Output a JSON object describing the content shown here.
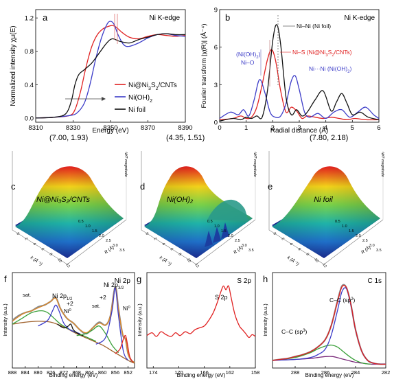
{
  "colors": {
    "red": "#e02020",
    "blue": "#3c3cc8",
    "black": "#111111",
    "green": "#3aa03a",
    "brown": "#a0622d",
    "orange": "#e08a2a",
    "gray": "#888888",
    "purple": "#7a2a7a"
  },
  "chart_data": [
    {
      "id": "a",
      "type": "line",
      "panel_label": "a",
      "title": "Ni K-edge",
      "xlabel": "Energy (eV)",
      "ylabel": "Normalized intensity  χμ(E)",
      "xlim": [
        8310,
        8390
      ],
      "ylim": [
        -0.05,
        1.3
      ],
      "xticks": [
        "8310",
        "8330",
        "8350",
        "8370",
        "8390"
      ],
      "yticks": [
        "0.0",
        "0.4",
        "0.8",
        "1.2"
      ],
      "legend": "right",
      "series": [
        {
          "name": "Ni@Ni3S2/CNTs",
          "legend_html": "Ni@Ni<tspan baseline-shift='sub' font-size='7'>3</tspan>S<tspan baseline-shift='sub' font-size='7'>2</tspan>/CNTs",
          "color": "red",
          "x": [
            8310,
            8320,
            8328,
            8331,
            8334,
            8337,
            8340,
            8343,
            8346,
            8349,
            8351,
            8353,
            8356,
            8360,
            8365,
            8370,
            8375,
            8380,
            8385,
            8390
          ],
          "y": [
            0.0,
            0.01,
            0.03,
            0.1,
            0.32,
            0.62,
            0.86,
            1.0,
            1.07,
            1.1,
            1.11,
            1.09,
            1.03,
            0.97,
            0.95,
            0.98,
            1.0,
            0.99,
            0.98,
            0.99
          ]
        },
        {
          "name": "Ni(OH)2",
          "legend_html": "Ni(OH)<tspan baseline-shift='sub' font-size='7'>2</tspan>",
          "color": "blue",
          "x": [
            8310,
            8320,
            8328,
            8332,
            8336,
            8339,
            8342,
            8345,
            8348,
            8350,
            8352,
            8354,
            8357,
            8360,
            8365,
            8370,
            8375,
            8380,
            8385,
            8390
          ],
          "y": [
            0.0,
            0.01,
            0.03,
            0.06,
            0.18,
            0.4,
            0.7,
            0.95,
            1.12,
            1.16,
            1.12,
            1.0,
            0.88,
            0.86,
            0.9,
            0.96,
            1.0,
            1.01,
            0.99,
            0.98
          ]
        },
        {
          "name": "Ni foil",
          "legend_html": "Ni foil",
          "color": "black",
          "x": [
            8310,
            8320,
            8326,
            8329,
            8331,
            8333,
            8336,
            8340,
            8344,
            8348,
            8351,
            8355,
            8360,
            8365,
            8370,
            8375,
            8380,
            8385,
            8390
          ],
          "y": [
            0.0,
            0.01,
            0.05,
            0.2,
            0.4,
            0.52,
            0.58,
            0.66,
            0.78,
            0.9,
            0.95,
            0.92,
            0.9,
            0.94,
            0.97,
            1.0,
            1.01,
            1.0,
            1.0
          ]
        }
      ]
    },
    {
      "id": "b",
      "type": "line",
      "panel_label": "b",
      "title": "Ni K-edge",
      "xlabel": "Radial distance (Å)",
      "ylabel": "Fourier transform |χ(R)| (Å⁻⁴)",
      "xlim": [
        0,
        6
      ],
      "ylim": [
        0,
        9
      ],
      "xticks": [
        "0",
        "1",
        "2",
        "3",
        "4",
        "5",
        "6"
      ],
      "yticks": [
        "0",
        "3",
        "6",
        "9"
      ],
      "annotations": [
        "Ni–Ni (Ni foil)",
        "(Ni(OH)2)",
        "Ni–O",
        "Ni–S (Ni@Ni3S2/CNTs)",
        "Ni···Ni (Ni(OH)2)"
      ],
      "series": [
        {
          "name": "Ni@Ni3S2/CNTs",
          "color": "red",
          "x": [
            0,
            0.5,
            0.8,
            1.0,
            1.2,
            1.4,
            1.6,
            1.8,
            1.95,
            2.1,
            2.3,
            2.5,
            2.7,
            2.9,
            3.1,
            3.3,
            3.6,
            3.9,
            4.2,
            4.5,
            4.8,
            5.1,
            5.5,
            6.0
          ],
          "y": [
            0.2,
            0.3,
            0.5,
            0.3,
            0.4,
            1.2,
            3.0,
            5.0,
            5.8,
            5.0,
            2.5,
            0.8,
            1.2,
            0.9,
            0.3,
            0.5,
            0.4,
            0.3,
            0.4,
            0.3,
            0.2,
            0.3,
            0.2,
            0.2
          ]
        },
        {
          "name": "Ni(OH)2",
          "color": "blue",
          "x": [
            0,
            0.4,
            0.7,
            0.9,
            1.1,
            1.3,
            1.5,
            1.7,
            1.9,
            2.1,
            2.3,
            2.5,
            2.7,
            2.85,
            3.0,
            3.2,
            3.4,
            3.7,
            4.0,
            4.3,
            4.6,
            4.9,
            5.2,
            5.5,
            5.8,
            6.0
          ],
          "y": [
            0.3,
            0.8,
            0.6,
            1.0,
            0.5,
            1.8,
            3.4,
            2.4,
            0.8,
            0.4,
            0.5,
            1.5,
            3.3,
            3.7,
            2.6,
            0.8,
            0.4,
            0.7,
            0.3,
            0.8,
            1.0,
            0.4,
            0.8,
            1.2,
            0.6,
            0.3
          ]
        },
        {
          "name": "Ni foil",
          "color": "black",
          "x": [
            0,
            0.5,
            0.8,
            1.0,
            1.2,
            1.4,
            1.6,
            1.8,
            2.0,
            2.15,
            2.3,
            2.5,
            2.7,
            2.9,
            3.1,
            3.3,
            3.6,
            3.9,
            4.2,
            4.4,
            4.6,
            4.8,
            5.0,
            5.3,
            5.6,
            6.0
          ],
          "y": [
            0.1,
            0.3,
            0.2,
            0.4,
            0.3,
            0.5,
            0.4,
            2.5,
            6.5,
            7.8,
            6.2,
            2.0,
            0.6,
            1.0,
            0.5,
            0.8,
            1.8,
            2.5,
            0.9,
            1.6,
            2.3,
            1.5,
            0.6,
            0.8,
            0.4,
            0.2
          ]
        }
      ]
    },
    {
      "id": "c",
      "type": "heatmap",
      "panel_label": "c",
      "peak_label": "(7.00, 1.93)",
      "sample_label": "Ni@Ni₃S₂/CNTs",
      "zlabel": "WT magnitude",
      "xlabel": "k (Å⁻¹)",
      "ylabel": "R (Å)",
      "xticks": [
        "0",
        "2",
        "4",
        "6",
        "8",
        "10",
        "12"
      ],
      "yticks": [
        "0.5",
        "1.0",
        "1.5",
        "2.0",
        "2.5",
        "3.0",
        "3.5"
      ],
      "peak_k": 7.0,
      "peak_r": 1.93
    },
    {
      "id": "d",
      "type": "heatmap",
      "panel_label": "d",
      "peak_label": "(4.35, 1.51)",
      "sample_label": "Ni(OH)₂",
      "zlabel": "WT magnitude",
      "xlabel": "k (Å⁻¹)",
      "ylabel": "R (Å)",
      "xticks": [
        "0",
        "2",
        "4",
        "6",
        "8",
        "10",
        "12"
      ],
      "yticks": [
        "0.5",
        "1.0",
        "1.5",
        "2.0",
        "2.5",
        "3.0",
        "3.5"
      ],
      "peak_k": 4.35,
      "peak_r": 1.51
    },
    {
      "id": "e",
      "type": "heatmap",
      "panel_label": "e",
      "peak_label": "(7.80, 2.18)",
      "sample_label": "Ni foil",
      "zlabel": "WT magnitude",
      "xlabel": "k (Å⁻¹)",
      "ylabel": "R (Å)",
      "xticks": [
        "0",
        "2",
        "4",
        "6",
        "8",
        "10",
        "12"
      ],
      "yticks": [
        "0.5",
        "1.0",
        "1.5",
        "2.0",
        "2.5",
        "3.0",
        "3.5"
      ],
      "peak_k": 7.8,
      "peak_r": 2.18
    },
    {
      "id": "f",
      "type": "line",
      "panel_label": "f",
      "title": "Ni 2p",
      "xlabel": "Binding energy (eV)",
      "ylabel": "Intensity (a.u.)",
      "xlim": [
        888,
        850
      ],
      "ylim": [
        0,
        1
      ],
      "xticks": [
        "888",
        "884",
        "880",
        "876",
        "872",
        "868",
        "864",
        "860",
        "856",
        "852"
      ],
      "annotations": [
        "sat.",
        "Ni 2p1/2",
        "+2",
        "Ni0",
        "sat.",
        "Ni 2p3/2",
        "+2",
        "Ni0"
      ],
      "series": [
        {
          "name": "raw",
          "color": "gray",
          "x": [
            888,
            886,
            884,
            882,
            880,
            878,
            876,
            874.5,
            873,
            871,
            869,
            867,
            865,
            863,
            861,
            859,
            857.5,
            856,
            855,
            853.7,
            852.8,
            852,
            851,
            850
          ],
          "y": [
            0.5,
            0.55,
            0.58,
            0.6,
            0.64,
            0.66,
            0.7,
            0.74,
            0.62,
            0.52,
            0.47,
            0.4,
            0.36,
            0.42,
            0.48,
            0.45,
            0.55,
            0.85,
            0.62,
            0.35,
            0.3,
            0.15,
            0.08,
            0.06
          ]
        },
        {
          "name": "fit",
          "color": "orange",
          "x": [
            888,
            886,
            884,
            882,
            880,
            878,
            876,
            874.5,
            873,
            871,
            869,
            867,
            865,
            863,
            861,
            859,
            857.5,
            856,
            855,
            853.7,
            852.8,
            852,
            851,
            850
          ],
          "y": [
            0.49,
            0.54,
            0.58,
            0.6,
            0.63,
            0.66,
            0.7,
            0.73,
            0.62,
            0.52,
            0.47,
            0.4,
            0.37,
            0.42,
            0.47,
            0.45,
            0.55,
            0.84,
            0.61,
            0.36,
            0.3,
            0.15,
            0.08,
            0.06
          ]
        },
        {
          "name": "background",
          "color": "brown",
          "x": [
            888,
            884,
            880,
            876,
            872,
            868,
            864,
            860,
            856,
            852,
            850
          ],
          "y": [
            0.46,
            0.48,
            0.49,
            0.48,
            0.43,
            0.36,
            0.3,
            0.24,
            0.16,
            0.08,
            0.05
          ]
        },
        {
          "name": "sat-1",
          "color": "green",
          "x": [
            888,
            885,
            882,
            879,
            877,
            875,
            873,
            870,
            866,
            862
          ],
          "y": [
            0.46,
            0.52,
            0.58,
            0.6,
            0.58,
            0.52,
            0.46,
            0.4,
            0.34,
            0.28
          ]
        },
        {
          "name": "ni2p12-2",
          "color": "blue",
          "x": [
            880,
            877,
            875.5,
            874.5,
            873.5,
            872,
            870,
            867
          ],
          "y": [
            0.44,
            0.5,
            0.6,
            0.66,
            0.6,
            0.47,
            0.4,
            0.36
          ]
        },
        {
          "name": "ni2p12-0",
          "color": "black",
          "x": [
            874,
            872,
            870.6,
            869.8,
            869,
            867.5,
            866
          ],
          "y": [
            0.46,
            0.42,
            0.44,
            0.46,
            0.4,
            0.36,
            0.34
          ]
        },
        {
          "name": "sat-2",
          "color": "green",
          "x": [
            868,
            865,
            863,
            861,
            859,
            857,
            855
          ],
          "y": [
            0.34,
            0.36,
            0.4,
            0.44,
            0.36,
            0.24,
            0.16
          ]
        },
        {
          "name": "ni2p32-2",
          "color": "blue",
          "x": [
            862,
            859,
            857,
            856,
            855,
            853.5,
            852
          ],
          "y": [
            0.25,
            0.32,
            0.6,
            0.84,
            0.55,
            0.18,
            0.08
          ]
        },
        {
          "name": "ni2p32-0",
          "color": "red",
          "x": [
            856,
            854.5,
            853.5,
            852.8,
            852.2,
            851.5,
            850.5
          ],
          "y": [
            0.15,
            0.2,
            0.3,
            0.34,
            0.25,
            0.12,
            0.06
          ]
        }
      ]
    },
    {
      "id": "g",
      "type": "line",
      "panel_label": "g",
      "title": "S 2p",
      "xlabel": "Binding energy (eV)",
      "ylabel": "Intensity (a.u.)",
      "xlim": [
        175,
        158
      ],
      "ylim": [
        0,
        1
      ],
      "xticks": [
        "174",
        "170",
        "166",
        "162",
        "158"
      ],
      "annotations": [
        "S 2p"
      ],
      "series": [
        {
          "name": "S 2p",
          "color": "red",
          "x": [
            175,
            174.2,
            173.5,
            172.8,
            172,
            171.2,
            170.5,
            169.8,
            169,
            168.2,
            167.5,
            166.8,
            166,
            165.3,
            164.6,
            164,
            163.4,
            163,
            162.6,
            162.2,
            161.8,
            161.2,
            160.5,
            160,
            159.5,
            159,
            158.5,
            158
          ],
          "y": [
            0.34,
            0.37,
            0.33,
            0.38,
            0.35,
            0.33,
            0.37,
            0.34,
            0.38,
            0.36,
            0.4,
            0.42,
            0.44,
            0.5,
            0.58,
            0.68,
            0.8,
            0.86,
            0.82,
            0.86,
            0.74,
            0.56,
            0.44,
            0.4,
            0.36,
            0.32,
            0.35,
            0.33
          ]
        }
      ]
    },
    {
      "id": "h",
      "type": "line",
      "panel_label": "h",
      "title": "C 1s",
      "xlabel": "Binding energy (eV)",
      "ylabel": "Intensity (a.u.)",
      "xlim": [
        289.5,
        282
      ],
      "ylim": [
        0,
        1
      ],
      "xticks": [
        "288",
        "286",
        "284",
        "282"
      ],
      "annotations": [
        "C–C (sp2)",
        "C–C (sp3)"
      ],
      "series": [
        {
          "name": "raw",
          "color": "gray",
          "x": [
            289.5,
            289,
            288.5,
            288,
            287.5,
            287,
            286.5,
            286,
            285.6,
            285.2,
            284.9,
            284.6,
            284.3,
            284,
            283.6,
            283.2,
            282.8,
            282.4,
            282
          ],
          "y": [
            0.08,
            0.09,
            0.1,
            0.12,
            0.14,
            0.17,
            0.22,
            0.3,
            0.45,
            0.7,
            0.86,
            0.84,
            0.66,
            0.4,
            0.18,
            0.08,
            0.05,
            0.04,
            0.04
          ]
        },
        {
          "name": "background",
          "color": "purple",
          "x": [
            289.5,
            288,
            287,
            286.5,
            286,
            285.5,
            285,
            284.5,
            284,
            283.5,
            283,
            282.5,
            282
          ],
          "y": [
            0.08,
            0.09,
            0.1,
            0.11,
            0.12,
            0.12,
            0.1,
            0.08,
            0.06,
            0.05,
            0.04,
            0.04,
            0.04
          ]
        },
        {
          "name": "C–C (sp3)",
          "color": "green",
          "x": [
            289.5,
            288,
            287,
            286.5,
            286,
            285.6,
            285.2,
            284.8,
            284.4,
            284,
            283.5,
            283
          ],
          "y": [
            0.08,
            0.11,
            0.16,
            0.2,
            0.23,
            0.24,
            0.22,
            0.17,
            0.12,
            0.08,
            0.05,
            0.04
          ]
        },
        {
          "name": "C–C (sp2)",
          "color": "blue",
          "x": [
            289.5,
            288,
            287,
            286.5,
            286,
            285.6,
            285.2,
            284.9,
            284.6,
            284.3,
            284,
            283.6,
            283.2,
            282.8,
            282.4,
            282
          ],
          "y": [
            0.08,
            0.09,
            0.11,
            0.14,
            0.2,
            0.35,
            0.6,
            0.8,
            0.83,
            0.65,
            0.4,
            0.18,
            0.08,
            0.05,
            0.04,
            0.04
          ]
        },
        {
          "name": "fit",
          "color": "red",
          "x": [
            289.5,
            289,
            288.5,
            288,
            287.5,
            287,
            286.5,
            286,
            285.6,
            285.2,
            284.9,
            284.6,
            284.3,
            284,
            283.6,
            283.2,
            282.8,
            282.4,
            282
          ],
          "y": [
            0.08,
            0.09,
            0.1,
            0.12,
            0.14,
            0.17,
            0.22,
            0.3,
            0.45,
            0.69,
            0.85,
            0.84,
            0.66,
            0.4,
            0.18,
            0.08,
            0.05,
            0.04,
            0.04
          ]
        }
      ]
    }
  ]
}
